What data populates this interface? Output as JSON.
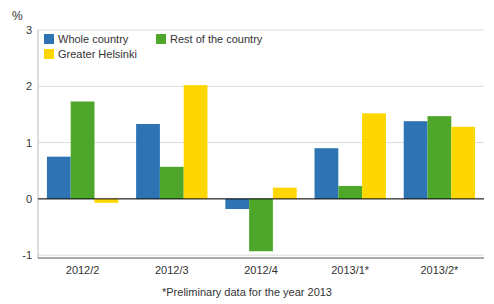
{
  "chart_data": {
    "type": "bar",
    "ylabel": "%",
    "annotations": [
      "*Preliminary data for the year 2013"
    ],
    "categories": [
      "2012/2",
      "2012/3",
      "2012/4",
      "2013/1*",
      "2013/2*"
    ],
    "series": [
      {
        "name": "Whole country",
        "color": "#2E74B5",
        "values": [
          0.75,
          1.33,
          -0.18,
          0.9,
          1.38
        ]
      },
      {
        "name": "Rest of the country",
        "color": "#4EA72A",
        "values": [
          1.73,
          0.57,
          -0.93,
          0.23,
          1.47
        ]
      },
      {
        "name": "Greater Helsinki",
        "color": "#FFD700",
        "values": [
          -0.07,
          2.02,
          0.2,
          1.52,
          1.28
        ]
      }
    ],
    "ylim": [
      -1.05,
      3.0
    ],
    "yticks": [
      -1,
      0,
      1,
      2,
      3
    ],
    "grid": true,
    "legend": "upper left"
  }
}
